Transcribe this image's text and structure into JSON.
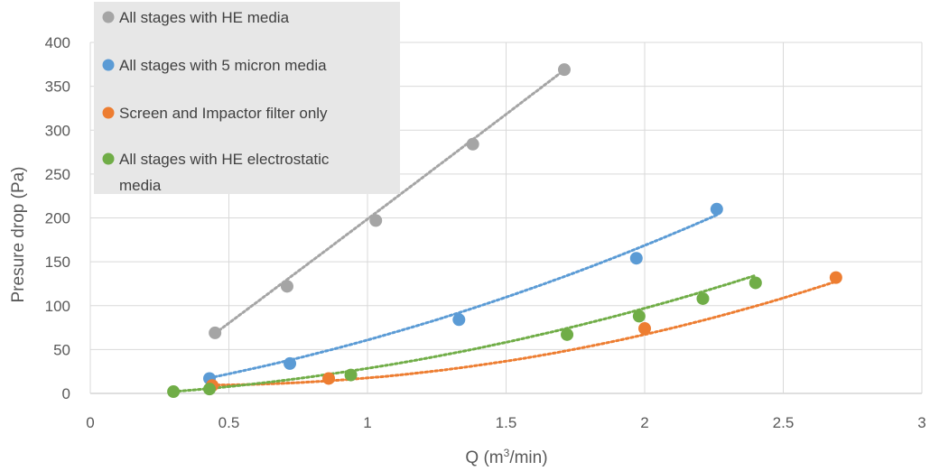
{
  "chart_data": {
    "type": "scatter",
    "title": "",
    "xlabel": "Q (m",
    "xlabel_sup": "3",
    "xlabel_tail": "/min)",
    "ylabel": "Presure drop (Pa)",
    "xlim": [
      0,
      3
    ],
    "ylim": [
      0,
      400
    ],
    "x_ticks": [
      "0",
      "0.5",
      "1",
      "1.5",
      "2",
      "2.5",
      "3"
    ],
    "y_ticks": [
      "0",
      "50",
      "100",
      "150",
      "200",
      "250",
      "300",
      "350",
      "400"
    ],
    "grid": true,
    "legend_position": "top-left",
    "trendline_style": "dotted polynomial",
    "series": [
      {
        "name": "All stages with HE media",
        "color": "#a5a5a5",
        "x": [
          0.45,
          0.71,
          1.03,
          1.38,
          1.71
        ],
        "y": [
          69,
          122,
          197,
          284,
          369
        ],
        "trend_x": [
          0.45,
          1.71
        ],
        "trend": [
          1.85,
          234.25,
          -37.44
        ]
      },
      {
        "name": "All stages with 5 micron media",
        "color": "#5b9bd5",
        "x": [
          0.43,
          0.72,
          1.33,
          1.97,
          2.26
        ],
        "y": [
          17,
          34,
          84,
          154,
          210
        ],
        "trend_x": [
          0.43,
          2.26
        ],
        "trend": [
          20.35,
          46.67,
          -6.13
        ]
      },
      {
        "name": "Screen and Impactor filter only",
        "color": "#ed7d31",
        "x": [
          0.44,
          0.86,
          2.0,
          2.69
        ],
        "y": [
          9,
          17,
          74,
          132
        ],
        "trend_x": [
          0.44,
          2.69
        ],
        "trend": [
          22.5,
          -18.0,
          13.1
        ]
      },
      {
        "name": "All stages with HE electrostatic media",
        "legend_lines": [
          "All stages with HE electrostatic",
          "media"
        ],
        "color": "#70ad47",
        "x": [
          0.3,
          0.43,
          0.94,
          1.72,
          1.98,
          2.21,
          2.4
        ],
        "y": [
          2,
          5,
          21,
          67,
          88,
          108,
          126
        ],
        "trend_x": [
          0.3,
          2.4
        ],
        "trend": [
          18.0,
          14.5,
          -4.0
        ]
      }
    ]
  }
}
